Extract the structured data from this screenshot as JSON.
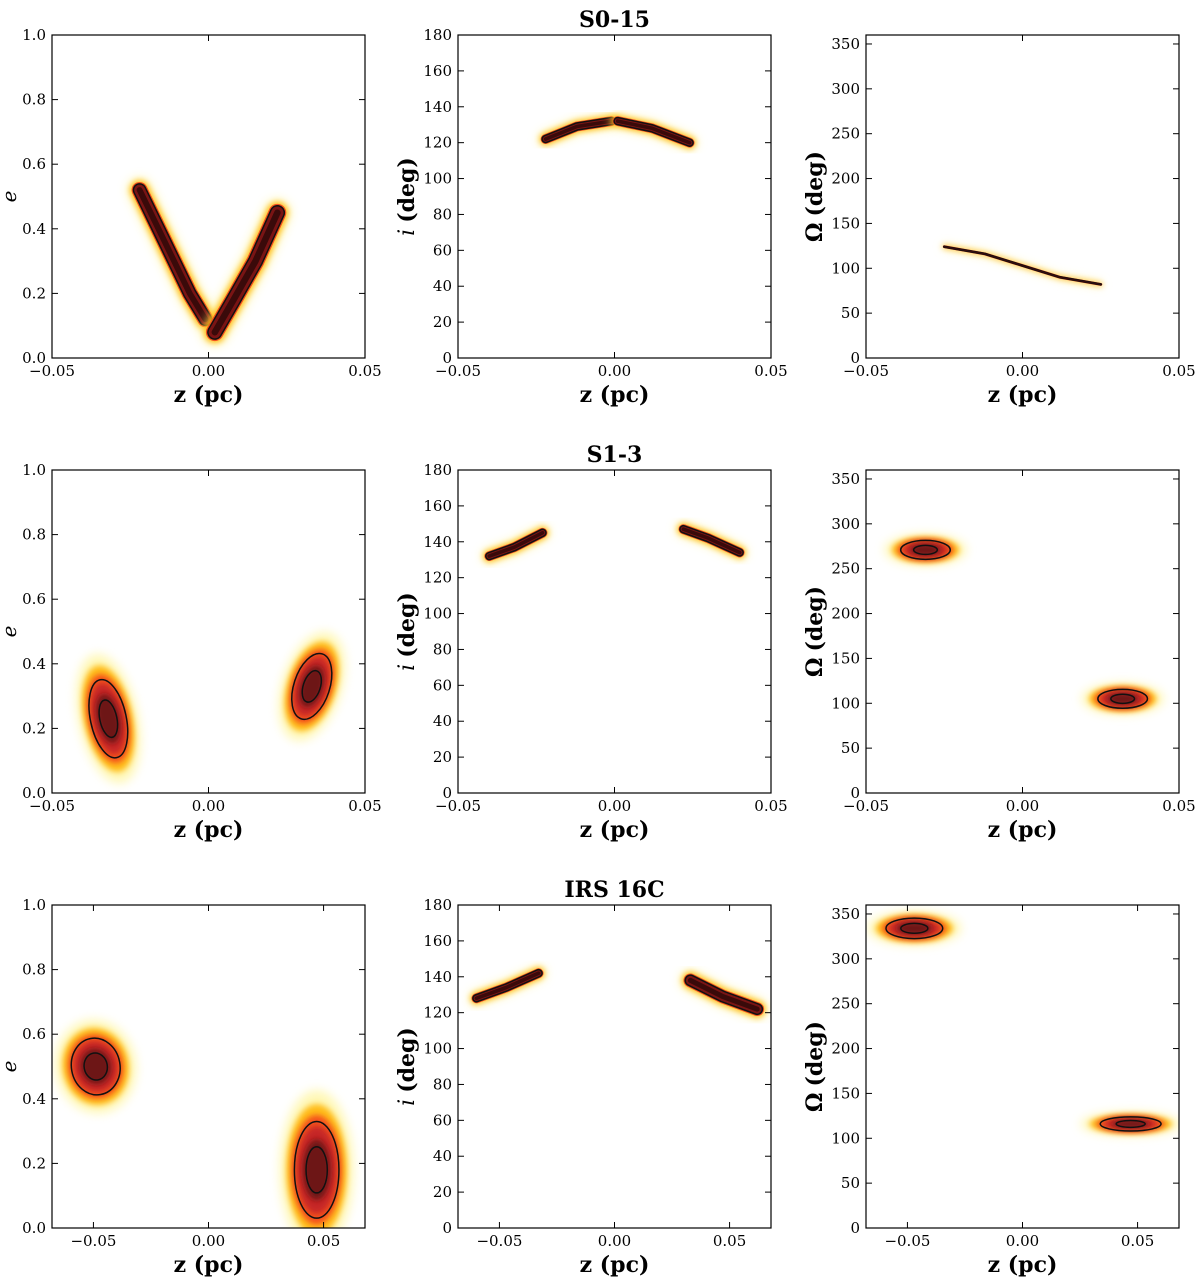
{
  "figure": {
    "rows": [
      {
        "title": "S0-15",
        "panels": [
          {
            "xlabel": "z (pc)",
            "ylabel": "e",
            "xlim": [
              -0.05,
              0.05
            ],
            "ylim": [
              0,
              1.0
            ],
            "xticks": [
              -0.05,
              0.0,
              0.05
            ],
            "xtick_labels": [
              "−0.05",
              "0.00",
              "0.05"
            ],
            "yticks": [
              0,
              0.2,
              0.4,
              0.6,
              0.8,
              1.0
            ],
            "ytick_labels": [
              "0.0",
              "0.2",
              "0.4",
              "0.6",
              "0.8",
              "1.0"
            ],
            "blobs": [
              {
                "type": "band",
                "points": [
                  [
                    -0.022,
                    0.52
                  ],
                  [
                    -0.015,
                    0.38
                  ],
                  [
                    -0.006,
                    0.2
                  ],
                  [
                    -0.001,
                    0.12
                  ]
                ],
                "width": 0.045
              },
              {
                "type": "band",
                "points": [
                  [
                    0.002,
                    0.08
                  ],
                  [
                    0.008,
                    0.18
                  ],
                  [
                    0.015,
                    0.3
                  ],
                  [
                    0.022,
                    0.45
                  ]
                ],
                "width": 0.05
              }
            ]
          },
          {
            "xlabel": "z (pc)",
            "ylabel": "(deg)",
            "ylabel_symbol": "i",
            "xlim": [
              -0.05,
              0.05
            ],
            "ylim": [
              0,
              180
            ],
            "xticks": [
              -0.05,
              0.0,
              0.05
            ],
            "xtick_labels": [
              "−0.05",
              "0.00",
              "0.05"
            ],
            "yticks": [
              0,
              20,
              40,
              60,
              80,
              100,
              120,
              140,
              160,
              180
            ],
            "ytick_labels": [
              "0",
              "20",
              "40",
              "60",
              "80",
              "100",
              "120",
              "140",
              "160",
              "180"
            ],
            "blobs": [
              {
                "type": "band",
                "points": [
                  [
                    -0.022,
                    122
                  ],
                  [
                    -0.012,
                    129
                  ],
                  [
                    -0.001,
                    132
                  ]
                ],
                "width": 5
              },
              {
                "type": "band",
                "points": [
                  [
                    0.001,
                    132
                  ],
                  [
                    0.012,
                    128
                  ],
                  [
                    0.024,
                    120
                  ]
                ],
                "width": 5
              }
            ]
          },
          {
            "xlabel": "z (pc)",
            "ylabel": "(deg)",
            "ylabel_symbol": "Ω",
            "xlim": [
              -0.05,
              0.05
            ],
            "ylim": [
              0,
              360
            ],
            "xticks": [
              -0.05,
              0.0,
              0.05
            ],
            "xtick_labels": [
              "−0.05",
              "0.00",
              "0.05"
            ],
            "yticks": [
              0,
              50,
              100,
              150,
              200,
              250,
              300,
              350
            ],
            "ytick_labels": [
              "0",
              "50",
              "100",
              "150",
              "200",
              "250",
              "300",
              "350"
            ],
            "blobs": [
              {
                "type": "band",
                "points": [
                  [
                    -0.025,
                    124
                  ],
                  [
                    -0.012,
                    116
                  ],
                  [
                    0.0,
                    103
                  ],
                  [
                    0.012,
                    90
                  ],
                  [
                    0.025,
                    82
                  ]
                ],
                "width": 3
              }
            ]
          }
        ]
      },
      {
        "title": "S1-3",
        "panels": [
          {
            "xlabel": "z (pc)",
            "ylabel": "e",
            "xlim": [
              -0.05,
              0.05
            ],
            "ylim": [
              0,
              1.0
            ],
            "xticks": [
              -0.05,
              0.0,
              0.05
            ],
            "xtick_labels": [
              "−0.05",
              "0.00",
              "0.05"
            ],
            "yticks": [
              0,
              0.2,
              0.4,
              0.6,
              0.8,
              1.0
            ],
            "ytick_labels": [
              "0.0",
              "0.2",
              "0.4",
              "0.6",
              "0.8",
              "1.0"
            ],
            "blobs": [
              {
                "type": "ellipse",
                "cx": -0.032,
                "cy": 0.23,
                "rx": 0.0065,
                "ry": 0.14,
                "rot": -12
              },
              {
                "type": "ellipse",
                "cx": 0.033,
                "cy": 0.33,
                "rx": 0.0065,
                "ry": 0.12,
                "rot": 18
              }
            ]
          },
          {
            "xlabel": "z (pc)",
            "ylabel": "(deg)",
            "ylabel_symbol": "i",
            "xlim": [
              -0.05,
              0.05
            ],
            "ylim": [
              0,
              180
            ],
            "xticks": [
              -0.05,
              0.0,
              0.05
            ],
            "xtick_labels": [
              "−0.05",
              "0.00",
              "0.05"
            ],
            "yticks": [
              0,
              20,
              40,
              60,
              80,
              100,
              120,
              140,
              160,
              180
            ],
            "ytick_labels": [
              "0",
              "20",
              "40",
              "60",
              "80",
              "100",
              "120",
              "140",
              "160",
              "180"
            ],
            "blobs": [
              {
                "type": "band",
                "points": [
                  [
                    -0.04,
                    132
                  ],
                  [
                    -0.032,
                    137
                  ],
                  [
                    -0.023,
                    145
                  ]
                ],
                "width": 5
              },
              {
                "type": "band",
                "points": [
                  [
                    0.022,
                    147
                  ],
                  [
                    0.03,
                    142
                  ],
                  [
                    0.04,
                    134
                  ]
                ],
                "width": 5
              }
            ]
          },
          {
            "xlabel": "z (pc)",
            "ylabel": "(deg)",
            "ylabel_symbol": "Ω",
            "xlim": [
              -0.05,
              0.05
            ],
            "ylim": [
              0,
              360
            ],
            "xticks": [
              -0.05,
              0.0,
              0.05
            ],
            "xtick_labels": [
              "−0.05",
              "0.00",
              "0.05"
            ],
            "yticks": [
              0,
              50,
              100,
              150,
              200,
              250,
              300,
              350
            ],
            "ytick_labels": [
              "0",
              "50",
              "100",
              "150",
              "200",
              "250",
              "300",
              "350"
            ],
            "blobs": [
              {
                "type": "ellipse",
                "cx": -0.031,
                "cy": 271,
                "rx": 0.009,
                "ry": 12,
                "rot": 0
              },
              {
                "type": "ellipse",
                "cx": 0.032,
                "cy": 105,
                "rx": 0.009,
                "ry": 12,
                "rot": 0
              }
            ]
          }
        ]
      },
      {
        "title": "IRS 16C",
        "panels": [
          {
            "xlabel": "z (pc)",
            "ylabel": "e",
            "xlim": [
              -0.068,
              0.068
            ],
            "ylim": [
              0,
              1.0
            ],
            "xticks": [
              -0.05,
              0.0,
              0.05
            ],
            "xtick_labels": [
              "−0.05",
              "0.00",
              "0.05"
            ],
            "yticks": [
              0,
              0.2,
              0.4,
              0.6,
              0.8,
              1.0
            ],
            "ytick_labels": [
              "0.0",
              "0.2",
              "0.4",
              "0.6",
              "0.8",
              "1.0"
            ],
            "blobs": [
              {
                "type": "ellipse",
                "cx": -0.049,
                "cy": 0.5,
                "rx": 0.012,
                "ry": 0.1,
                "rot": -10
              },
              {
                "type": "ellipse",
                "cx": 0.047,
                "cy": 0.18,
                "rx": 0.011,
                "ry": 0.17,
                "rot": 0
              }
            ]
          },
          {
            "xlabel": "z (pc)",
            "ylabel": "(deg)",
            "ylabel_symbol": "i",
            "xlim": [
              -0.068,
              0.068
            ],
            "ylim": [
              0,
              180
            ],
            "xticks": [
              -0.05,
              0.0,
              0.05
            ],
            "xtick_labels": [
              "−0.05",
              "0.00",
              "0.05"
            ],
            "yticks": [
              0,
              20,
              40,
              60,
              80,
              100,
              120,
              140,
              160,
              180
            ],
            "ytick_labels": [
              "0",
              "20",
              "40",
              "60",
              "80",
              "100",
              "120",
              "140",
              "160",
              "180"
            ],
            "blobs": [
              {
                "type": "band",
                "points": [
                  [
                    -0.06,
                    128
                  ],
                  [
                    -0.047,
                    134
                  ],
                  [
                    -0.033,
                    142
                  ]
                ],
                "width": 5
              },
              {
                "type": "band",
                "points": [
                  [
                    0.033,
                    138
                  ],
                  [
                    0.047,
                    129
                  ],
                  [
                    0.062,
                    122
                  ]
                ],
                "width": 7
              }
            ]
          },
          {
            "xlabel": "z (pc)",
            "ylabel": "(deg)",
            "ylabel_symbol": "Ω",
            "xlim": [
              -0.068,
              0.068
            ],
            "ylim": [
              0,
              360
            ],
            "xticks": [
              -0.05,
              0.0,
              0.05
            ],
            "xtick_labels": [
              "−0.05",
              "0.00",
              "0.05"
            ],
            "yticks": [
              0,
              50,
              100,
              150,
              200,
              250,
              300,
              350
            ],
            "ytick_labels": [
              "0",
              "50",
              "100",
              "150",
              "200",
              "250",
              "300",
              "350"
            ],
            "blobs": [
              {
                "type": "ellipse",
                "cx": -0.047,
                "cy": 334,
                "rx": 0.014,
                "ry": 13,
                "rot": 0
              },
              {
                "type": "ellipse",
                "cx": 0.047,
                "cy": 116,
                "rx": 0.015,
                "ry": 9,
                "rot": 0
              }
            ]
          }
        ]
      }
    ]
  },
  "chart_data": [
    {
      "type": "heatmap",
      "title": "S0-15",
      "xlabel": "z (pc)",
      "ylabel": "e",
      "xlim": [
        -0.05,
        0.05
      ],
      "ylim": [
        0,
        1.0
      ]
    },
    {
      "type": "heatmap",
      "title": "S0-15",
      "xlabel": "z (pc)",
      "ylabel": "i (deg)",
      "xlim": [
        -0.05,
        0.05
      ],
      "ylim": [
        0,
        180
      ]
    },
    {
      "type": "heatmap",
      "title": "S0-15",
      "xlabel": "z (pc)",
      "ylabel": "Ω (deg)",
      "xlim": [
        -0.05,
        0.05
      ],
      "ylim": [
        0,
        360
      ]
    },
    {
      "type": "heatmap",
      "title": "S1-3",
      "xlabel": "z (pc)",
      "ylabel": "e",
      "xlim": [
        -0.05,
        0.05
      ],
      "ylim": [
        0,
        1.0
      ]
    },
    {
      "type": "heatmap",
      "title": "S1-3",
      "xlabel": "z (pc)",
      "ylabel": "i (deg)",
      "xlim": [
        -0.05,
        0.05
      ],
      "ylim": [
        0,
        180
      ]
    },
    {
      "type": "heatmap",
      "title": "S1-3",
      "xlabel": "z (pc)",
      "ylabel": "Ω (deg)",
      "xlim": [
        -0.05,
        0.05
      ],
      "ylim": [
        0,
        360
      ]
    },
    {
      "type": "heatmap",
      "title": "IRS 16C",
      "xlabel": "z (pc)",
      "ylabel": "e",
      "xlim": [
        -0.068,
        0.068
      ],
      "ylim": [
        0,
        1.0
      ]
    },
    {
      "type": "heatmap",
      "title": "IRS 16C",
      "xlabel": "z (pc)",
      "ylabel": "i (deg)",
      "xlim": [
        -0.068,
        0.068
      ],
      "ylim": [
        0,
        180
      ]
    },
    {
      "type": "heatmap",
      "title": "IRS 16C",
      "xlabel": "z (pc)",
      "ylabel": "Ω (deg)",
      "xlim": [
        -0.068,
        0.068
      ],
      "ylim": [
        0,
        360
      ]
    }
  ],
  "colors": {
    "outer": "#fff176",
    "mid1": "#ffb300",
    "mid2": "#f4511e",
    "mid3": "#c62828",
    "core": "#4a0d0d",
    "contour": "#111111"
  }
}
